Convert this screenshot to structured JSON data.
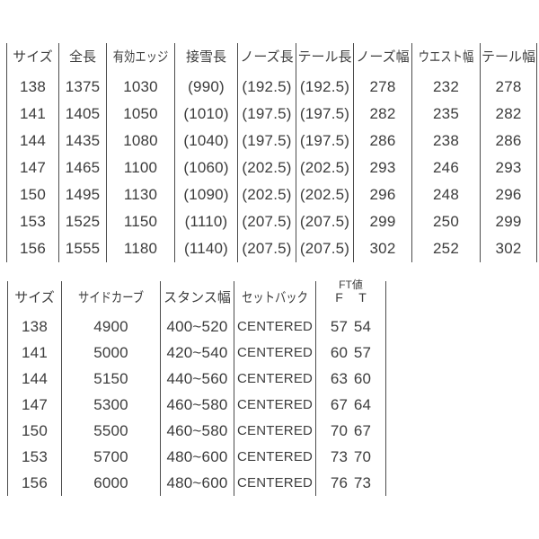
{
  "ui": {
    "background": "#ffffff",
    "text_color": "#3c3c3c",
    "line_color": "#4c4c4c"
  },
  "chart_data": [
    {
      "type": "table",
      "title": "",
      "headers": [
        "サイズ",
        "全長",
        "有効エッジ",
        "接雪長",
        "ノーズ長",
        "テール長",
        "ノーズ幅",
        "ウエスト幅",
        "テール幅"
      ],
      "rows": [
        [
          "138",
          "1375",
          "1030",
          "(990)",
          "(192.5)",
          "(192.5)",
          "278",
          "232",
          "278"
        ],
        [
          "141",
          "1405",
          "1050",
          "(1010)",
          "(197.5)",
          "(197.5)",
          "282",
          "235",
          "282"
        ],
        [
          "144",
          "1435",
          "1080",
          "(1040)",
          "(197.5)",
          "(197.5)",
          "286",
          "238",
          "286"
        ],
        [
          "147",
          "1465",
          "1100",
          "(1060)",
          "(202.5)",
          "(202.5)",
          "293",
          "246",
          "293"
        ],
        [
          "150",
          "1495",
          "1130",
          "(1090)",
          "(202.5)",
          "(202.5)",
          "296",
          "248",
          "296"
        ],
        [
          "153",
          "1525",
          "1150",
          "(1110)",
          "(207.5)",
          "(207.5)",
          "299",
          "250",
          "299"
        ],
        [
          "156",
          "1555",
          "1180",
          "(1140)",
          "(207.5)",
          "(207.5)",
          "302",
          "252",
          "302"
        ]
      ],
      "grid": "vertical-lines-only",
      "legend": "none"
    },
    {
      "type": "table",
      "title": "",
      "headers": [
        "サイズ",
        "サイドカーブ",
        "スタンス幅",
        "セットバック"
      ],
      "ft_header": {
        "label": "FT値",
        "f": "F",
        "t": "T"
      },
      "rows": [
        [
          "138",
          "4900",
          "400~520",
          "CENTERED",
          "57",
          "54"
        ],
        [
          "141",
          "5000",
          "420~540",
          "CENTERED",
          "60",
          "57"
        ],
        [
          "144",
          "5150",
          "440~560",
          "CENTERED",
          "63",
          "60"
        ],
        [
          "147",
          "5300",
          "460~580",
          "CENTERED",
          "67",
          "64"
        ],
        [
          "150",
          "5500",
          "460~580",
          "CENTERED",
          "70",
          "67"
        ],
        [
          "153",
          "5700",
          "480~600",
          "CENTERED",
          "73",
          "70"
        ],
        [
          "156",
          "6000",
          "480~600",
          "CENTERED",
          "76",
          "73"
        ]
      ],
      "grid": "vertical-lines-only",
      "legend": "none"
    }
  ]
}
